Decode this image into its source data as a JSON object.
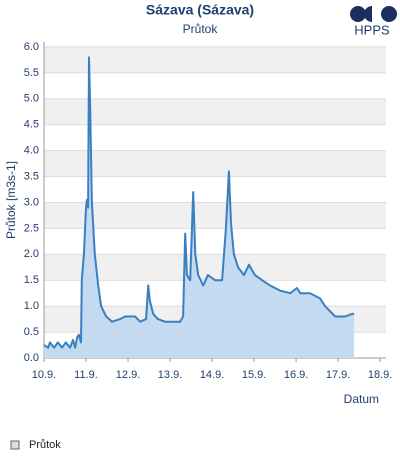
{
  "logo": "HPPS",
  "chart_data": {
    "type": "area",
    "title": "Sázava (Sázava)",
    "subtitle": "Průtok",
    "y_label": "Průtok [m3s-1]",
    "x_label": "Datum",
    "legend": "bottom-left",
    "grid": "bands",
    "x": [
      10.0,
      10.1,
      10.14,
      10.24,
      10.33,
      10.43,
      10.52,
      10.62,
      10.69,
      10.74,
      10.79,
      10.83,
      10.88,
      10.9,
      10.95,
      11.0,
      11.02,
      11.05,
      11.07,
      11.1,
      11.14,
      11.21,
      11.29,
      11.36,
      11.48,
      11.62,
      11.81,
      11.93,
      12.17,
      12.29,
      12.43,
      12.48,
      12.52,
      12.6,
      12.71,
      12.88,
      13.24,
      13.31,
      13.36,
      13.4,
      13.48,
      13.55,
      13.6,
      13.67,
      13.79,
      13.9,
      14.07,
      14.24,
      14.33,
      14.4,
      14.45,
      14.52,
      14.62,
      14.76,
      14.88,
      15.02,
      15.19,
      15.38,
      15.62,
      15.86,
      16.02,
      16.1,
      16.33,
      16.57,
      16.69,
      16.81,
      16.93,
      17.17,
      17.33,
      17.38
    ],
    "series": [
      {
        "name": "Průtok",
        "color": "#3a7fbf",
        "fill": "#c3daf0",
        "values": [
          0.25,
          0.2,
          0.3,
          0.2,
          0.3,
          0.2,
          0.3,
          0.2,
          0.35,
          0.2,
          0.4,
          0.45,
          0.3,
          1.5,
          2.0,
          2.9,
          3.05,
          2.9,
          5.8,
          4.8,
          3.0,
          2.0,
          1.4,
          1.0,
          0.8,
          0.7,
          0.75,
          0.8,
          0.8,
          0.7,
          0.75,
          1.4,
          1.1,
          0.85,
          0.75,
          0.7,
          0.7,
          0.8,
          2.4,
          1.6,
          1.5,
          3.2,
          2.0,
          1.6,
          1.4,
          1.6,
          1.5,
          1.5,
          2.5,
          3.6,
          2.6,
          2.0,
          1.75,
          1.6,
          1.8,
          1.6,
          1.5,
          1.4,
          1.3,
          1.25,
          1.35,
          1.25,
          1.25,
          1.15,
          1.0,
          0.9,
          0.8,
          0.8,
          0.85,
          0.85
        ]
      }
    ],
    "xlim": [
      10,
      18.14
    ],
    "xticks": [
      {
        "value": 10,
        "label": "10.9."
      },
      {
        "value": 11,
        "label": "11.9."
      },
      {
        "value": 12,
        "label": "12.9."
      },
      {
        "value": 13,
        "label": "13.9."
      },
      {
        "value": 14,
        "label": "14.9."
      },
      {
        "value": 15,
        "label": "15.9."
      },
      {
        "value": 16,
        "label": "16.9."
      },
      {
        "value": 17,
        "label": "17.9."
      },
      {
        "value": 18,
        "label": "18.9."
      }
    ],
    "ylim": [
      0,
      6.1
    ],
    "yticks": [
      {
        "value": 0,
        "label": "0.0"
      },
      0.5,
      {
        "value": 1,
        "label": "1.0"
      },
      1.5,
      {
        "value": 2,
        "label": "2.0"
      },
      2.5,
      {
        "value": 3,
        "label": "3.0"
      },
      3.5,
      {
        "value": 4,
        "label": "4.0"
      },
      4.5,
      {
        "value": 5,
        "label": "5.0"
      },
      5.5,
      {
        "value": 6,
        "label": "6.0"
      }
    ]
  }
}
